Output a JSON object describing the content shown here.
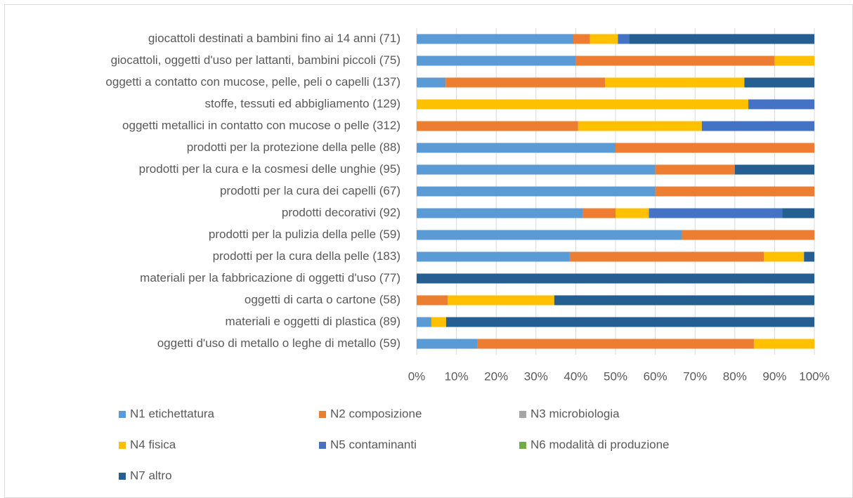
{
  "chart_data": {
    "type": "stacked-bar-horizontal",
    "categories": [
      "giocattoli destinati a bambini fino ai 14 anni  (71)",
      "giocattoli, oggetti d'uso per lattanti, bambini piccoli (75)",
      "oggetti a contatto con mucose, pelle, peli o capelli (137)",
      "stoffe, tessuti ed abbigliamento (129)",
      "oggetti metallici in contatto con mucose o pelle (312)",
      "prodotti per la protezione della pelle (88)",
      "prodotti per la cura e la cosmesi delle unghie (95)",
      "prodotti per la cura dei capelli (67)",
      "prodotti decorativi (92)",
      "prodotti per la pulizia della pelle (59)",
      "prodotti per la cura della pelle (183)",
      "materiali per la fabbricazione di oggetti d'uso (77)",
      "oggetti di carta o cartone (58)",
      "materiali e oggetti di plastica (89)",
      "oggetti d'uso di metallo o leghe di metallo (59)"
    ],
    "series": [
      {
        "name": "N1 etichettatura",
        "color": "#5b9bd5",
        "values": [
          39.4,
          40,
          7.3,
          0,
          0,
          50,
          60,
          60,
          41.7,
          66.7,
          38.5,
          0,
          0,
          3.7,
          15.2
        ]
      },
      {
        "name": "N2 composizione",
        "color": "#ed7d31",
        "values": [
          4.2,
          50,
          40.1,
          0,
          40.6,
          50,
          20,
          40,
          8.3,
          33.3,
          48.8,
          0,
          7.8,
          0,
          69.6
        ]
      },
      {
        "name": "N3 microbiologia",
        "color": "#a5a5a5",
        "values": [
          0,
          0,
          0,
          0,
          0,
          0,
          0,
          0,
          0,
          0,
          0,
          0,
          0,
          0,
          0
        ]
      },
      {
        "name": "N4 fisica",
        "color": "#ffc000",
        "values": [
          7.0,
          10,
          35.0,
          83.4,
          31.1,
          0,
          0,
          0,
          8.4,
          0,
          10.1,
          0,
          26.8,
          3.7,
          15.2
        ]
      },
      {
        "name": "N5 contaminanti",
        "color": "#4472c4",
        "values": [
          2.8,
          0,
          0,
          16.6,
          28.3,
          0,
          0,
          0,
          33.5,
          0,
          0,
          0,
          0,
          0,
          0
        ]
      },
      {
        "name": "N6 modalità di produzione",
        "color": "#70ad47",
        "values": [
          0,
          0,
          0,
          0,
          0,
          0,
          0,
          0,
          0,
          0,
          0,
          0,
          0,
          0,
          0
        ]
      },
      {
        "name": "N7 altro",
        "color": "#255e91",
        "values": [
          46.6,
          0,
          17.6,
          0,
          0,
          0,
          20,
          0,
          8.1,
          0,
          2.6,
          100,
          65.4,
          92.6,
          0
        ]
      }
    ],
    "xlim": [
      0,
      100
    ],
    "xticks": [
      {
        "value": 0,
        "label": "0%"
      },
      {
        "value": 10,
        "label": "10%"
      },
      {
        "value": 20,
        "label": "20%"
      },
      {
        "value": 30,
        "label": "30%"
      },
      {
        "value": 40,
        "label": "40%"
      },
      {
        "value": 50,
        "label": "50%"
      },
      {
        "value": 60,
        "label": "60%"
      },
      {
        "value": 70,
        "label": "70%"
      },
      {
        "value": 80,
        "label": "80%"
      },
      {
        "value": 90,
        "label": "90%"
      },
      {
        "value": 100,
        "label": "100%"
      }
    ],
    "grid": true,
    "legend": "bottom"
  }
}
